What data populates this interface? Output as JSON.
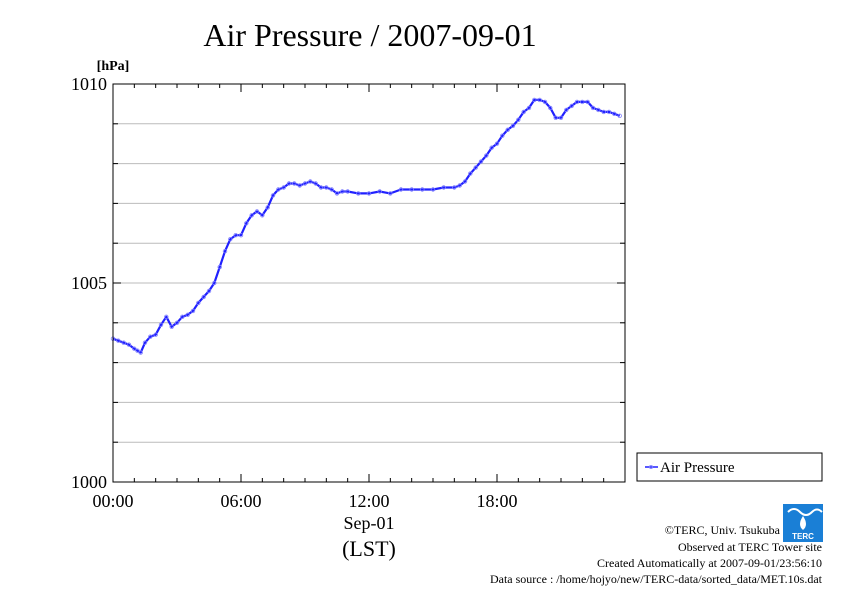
{
  "chart_data": {
    "type": "line",
    "title": "Air Pressure / 2007-09-01",
    "y_unit": "[hPa]",
    "xlabel_date": "Sep-01",
    "xlabel_tz": "(LST)",
    "ylim": [
      1000,
      1010
    ],
    "xlim_hours": [
      0,
      24
    ],
    "y_ticks": [
      {
        "value": 1000,
        "label": "1000"
      },
      {
        "value": 1005,
        "label": "1005"
      },
      {
        "value": 1010,
        "label": "1010"
      }
    ],
    "x_ticks": [
      {
        "value": 0,
        "label": "00:00"
      },
      {
        "value": 6,
        "label": "06:00"
      },
      {
        "value": 12,
        "label": "12:00"
      },
      {
        "value": 18,
        "label": "18:00"
      }
    ],
    "grid": true,
    "legend_position": "right",
    "series": [
      {
        "name": "Air Pressure",
        "color": "#2020ff",
        "x_hours": [
          0.0,
          0.25,
          0.5,
          0.75,
          1.0,
          1.15,
          1.3,
          1.5,
          1.75,
          2.0,
          2.25,
          2.5,
          2.75,
          3.0,
          3.25,
          3.5,
          3.75,
          4.0,
          4.25,
          4.5,
          4.75,
          5.0,
          5.25,
          5.5,
          5.75,
          6.0,
          6.25,
          6.5,
          6.75,
          7.0,
          7.25,
          7.5,
          7.75,
          8.0,
          8.25,
          8.5,
          8.75,
          9.0,
          9.25,
          9.5,
          9.75,
          10.0,
          10.25,
          10.5,
          10.75,
          11.0,
          11.5,
          12.0,
          12.5,
          13.0,
          13.5,
          14.0,
          14.5,
          15.0,
          15.5,
          16.0,
          16.25,
          16.5,
          16.75,
          17.0,
          17.25,
          17.5,
          17.75,
          18.0,
          18.25,
          18.5,
          18.75,
          19.0,
          19.25,
          19.5,
          19.75,
          20.0,
          20.25,
          20.5,
          20.75,
          21.0,
          21.25,
          21.5,
          21.75,
          22.0,
          22.25,
          22.5,
          22.75,
          23.0,
          23.25,
          23.5,
          23.75
        ],
        "values": [
          1003.6,
          1003.55,
          1003.5,
          1003.45,
          1003.35,
          1003.3,
          1003.25,
          1003.5,
          1003.65,
          1003.7,
          1003.95,
          1004.15,
          1003.9,
          1004.0,
          1004.15,
          1004.2,
          1004.3,
          1004.5,
          1004.65,
          1004.8,
          1005.0,
          1005.4,
          1005.8,
          1006.1,
          1006.2,
          1006.2,
          1006.5,
          1006.7,
          1006.8,
          1006.7,
          1006.9,
          1007.2,
          1007.35,
          1007.4,
          1007.5,
          1007.5,
          1007.45,
          1007.5,
          1007.55,
          1007.5,
          1007.4,
          1007.4,
          1007.35,
          1007.25,
          1007.3,
          1007.3,
          1007.25,
          1007.25,
          1007.3,
          1007.25,
          1007.35,
          1007.35,
          1007.35,
          1007.35,
          1007.4,
          1007.4,
          1007.45,
          1007.55,
          1007.75,
          1007.9,
          1008.05,
          1008.2,
          1008.4,
          1008.5,
          1008.7,
          1008.85,
          1008.95,
          1009.1,
          1009.3,
          1009.4,
          1009.6,
          1009.6,
          1009.55,
          1009.4,
          1009.15,
          1009.15,
          1009.35,
          1009.45,
          1009.55,
          1009.55,
          1009.55,
          1009.4,
          1009.35,
          1009.3,
          1009.3,
          1009.25,
          1009.2
        ]
      }
    ]
  },
  "footer": {
    "copyright": "©TERC, Univ. Tsukuba",
    "observed": "Observed at TERC Tower site",
    "created": "Created Automatically at 2007-09-01/23:56:10",
    "source": "Data source : /home/hojyo/new/TERC-data/sorted_data/MET.10s.dat",
    "logo_text": "TERC"
  },
  "colors": {
    "line": "#2020ff",
    "marker": "#8080ff",
    "grid": "#bbbbbb",
    "logo": "#1a7fd6"
  }
}
